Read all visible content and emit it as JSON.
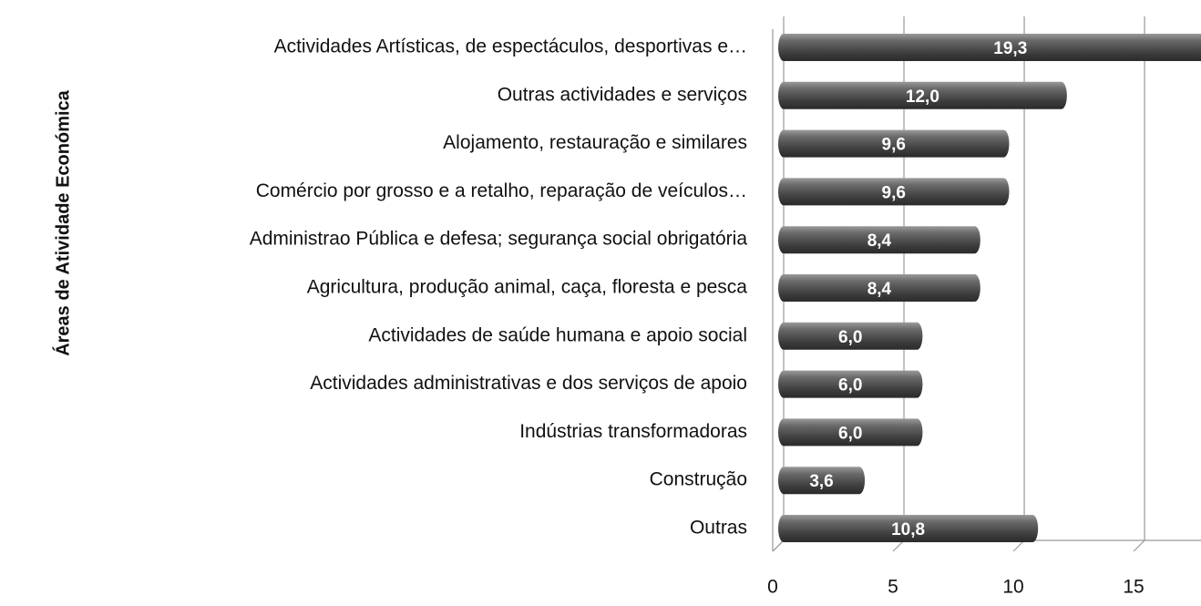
{
  "chart_data": {
    "type": "bar",
    "orientation": "horizontal",
    "y_axis_label": "Áreas de Atividade Económica",
    "categories": [
      "Actividades Artísticas, de espectáculos, desportivas e…",
      "Outras actividades e serviços",
      "Alojamento, restauração e similares",
      "Comércio por grosso e a retalho, reparação de veículos…",
      "Administrao Pública e defesa; segurança social obrigatória",
      "Agricultura, produção animal, caça, floresta e pesca",
      "Actividades de saúde humana e apoio social",
      "Actividades administrativas e dos serviços de apoio",
      "Indústrias transformadoras",
      "Construção",
      "Outras"
    ],
    "values": [
      19.3,
      12.0,
      9.6,
      9.6,
      8.4,
      8.4,
      6.0,
      6.0,
      6.0,
      3.6,
      10.8
    ],
    "value_labels": [
      "19,3",
      "12,0",
      "9,6",
      "9,6",
      "8,4",
      "8,4",
      "6,0",
      "6,0",
      "6,0",
      "3,6",
      "10,8"
    ],
    "color": "#555555",
    "xlim": [
      0,
      17.8
    ],
    "xticks": [
      0,
      5,
      10,
      15
    ],
    "grid": true
  }
}
